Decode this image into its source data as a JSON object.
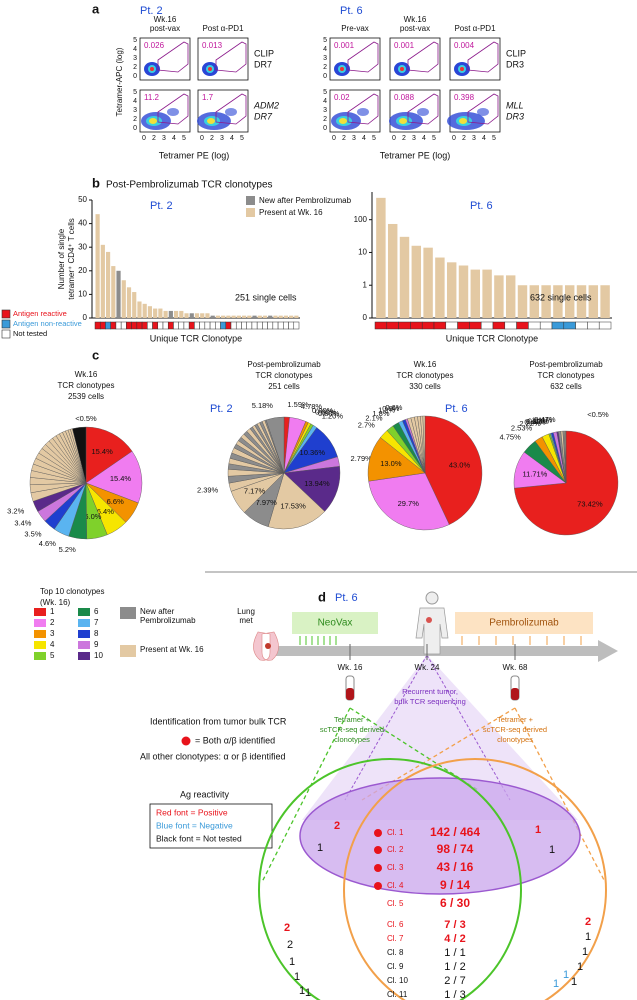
{
  "panel_a": {
    "label": "a",
    "y_axis_label": "Tetramer-APC (log)",
    "x_axis_label": "Tetramer PE (log)",
    "tick_labels": [
      "0",
      "2",
      "3",
      "4",
      "5"
    ],
    "patients": [
      {
        "name": "Pt. 2",
        "columns": [
          [
            "Wk.16",
            "post-vax"
          ],
          [
            "Post α-PD1"
          ]
        ],
        "rows": [
          {
            "label": [
              "CLIP",
              "DR7"
            ],
            "values": [
              0.026,
              0.013
            ]
          },
          {
            "label": [
              "ADM2",
              "DR7"
            ],
            "values": [
              11.2,
              1.7
            ]
          }
        ]
      },
      {
        "name": "Pt. 6",
        "columns": [
          [
            "Pre-vax"
          ],
          [
            "Wk.16",
            "post-vax"
          ],
          [
            "Post α-PD1"
          ]
        ],
        "rows": [
          {
            "label": [
              "CLIP",
              "DR3"
            ],
            "values": [
              0.001,
              0.001,
              0.004
            ]
          },
          {
            "label": [
              "MLL",
              "DR3"
            ],
            "values": [
              0.02,
              0.088,
              0.398
            ]
          }
        ]
      }
    ]
  },
  "panel_b": {
    "label": "b",
    "title": "Post-Pembrolizumab TCR clonotypes",
    "reactivity_legend": [
      {
        "name": "Antigen reactive",
        "color": "#e8131b"
      },
      {
        "name": "Antigen non-reactive",
        "color": "#3a9ad9"
      },
      {
        "name": "Not tested",
        "color": "#ffffff"
      }
    ]
  },
  "chart_data": [
    {
      "type": "bar",
      "subtitle": "Pt. 2",
      "y_label": [
        "Number of single",
        "tetramer⁺ CD4⁺ T cells"
      ],
      "x_label": "Unique TCR Clonotype",
      "annotation": "251 single cells",
      "ylim": [
        0,
        50
      ],
      "yticks": [
        0,
        10,
        20,
        30,
        40,
        50
      ],
      "series": [
        {
          "name": "New after Pembrolizumab",
          "color": "#8c8c8c",
          "values": [
            null,
            null,
            null,
            null,
            20,
            null,
            null,
            null,
            null,
            null,
            null,
            null,
            null,
            null,
            3,
            null,
            null,
            null,
            2,
            null,
            null,
            null,
            1,
            null,
            null,
            null,
            null,
            null,
            null,
            null,
            1,
            null,
            null,
            1,
            null,
            null,
            null,
            null,
            null
          ]
        },
        {
          "name": "Present at Wk. 16",
          "color": "#e3c9a3",
          "values": [
            44,
            31,
            28,
            22,
            null,
            16,
            13,
            11,
            7,
            6,
            5,
            4,
            4,
            3,
            null,
            3,
            3,
            2,
            null,
            2,
            2,
            2,
            null,
            1,
            1,
            1,
            1,
            1,
            1,
            1,
            null,
            1,
            1,
            null,
            1,
            1,
            1,
            1,
            1
          ]
        }
      ],
      "reactivity": [
        0,
        0,
        1,
        0,
        2,
        2,
        0,
        0,
        0,
        0,
        2,
        0,
        2,
        2,
        0,
        2,
        2,
        2,
        0,
        2,
        2,
        2,
        2,
        2,
        1,
        0,
        2,
        2,
        2,
        2,
        2,
        2,
        2,
        2,
        2,
        2,
        2,
        2,
        2
      ]
    },
    {
      "type": "bar",
      "subtitle": "Pt. 6",
      "x_label": "Unique TCR Clonotype",
      "annotation": "632 single cells",
      "log_scale": true,
      "ylim": [
        0.1,
        700
      ],
      "yticks": [
        {
          "value": 0.1,
          "label": "0"
        },
        1,
        10,
        100
      ],
      "color": "#e3c9a3",
      "values": [
        464,
        74,
        30,
        16,
        14,
        7,
        5,
        4,
        3,
        3,
        2,
        2,
        1,
        1,
        1,
        1,
        1,
        1,
        1,
        1
      ],
      "reactivity": [
        0,
        0,
        0,
        0,
        0,
        0,
        2,
        0,
        0,
        2,
        0,
        2,
        0,
        2,
        2,
        1,
        1,
        2,
        2,
        2
      ]
    },
    {
      "type": "pie",
      "title": [
        "Wk.16",
        "TCR clonotypes",
        "2539 cells"
      ],
      "annotation": "<0.5%",
      "values": [
        15.4,
        15.4,
        6.6,
        6.4,
        6.0,
        5.2,
        4.6,
        3.5,
        3.4,
        3.2,
        2.5,
        2.3,
        2.1,
        2,
        1.9,
        1.8,
        1.7,
        1.6,
        1.5,
        1.4,
        1.3,
        1.2,
        1.1,
        1.0,
        0.9,
        0.8,
        0.7,
        0.6,
        3.9
      ],
      "value_labels": [
        "15.4%",
        "15.4%",
        "6.6%",
        "6.4%",
        "6.0%",
        "5.2%",
        "4.6%",
        "3.5%",
        "3.4%",
        "3.2%",
        null,
        null,
        null,
        null,
        null,
        null,
        null,
        null,
        null,
        null,
        null,
        null,
        null,
        null,
        null,
        null,
        null,
        null,
        null
      ],
      "colors": [
        "#e8201e",
        "#f07cf0",
        "#f39200",
        "#f6e500",
        "#7fd12b",
        "#1a8a4a",
        "#5ab4f0",
        "#1f3fcf",
        "#cc77dd",
        "#5a2a8a",
        "#e3c9a3",
        "#e3c9a3",
        "#e3c9a3",
        "#e3c9a3",
        "#e3c9a3",
        "#e3c9a3",
        "#e3c9a3",
        "#e3c9a3",
        "#e3c9a3",
        "#e3c9a3",
        "#e3c9a3",
        "#e3c9a3",
        "#e3c9a3",
        "#e3c9a3",
        "#e3c9a3",
        "#e3c9a3",
        "#e3c9a3",
        "#e3c9a3",
        "#111111"
      ]
    },
    {
      "type": "pie",
      "title": [
        "Post-pembrolizumab",
        "TCR clonotypes",
        "251 cells"
      ],
      "values": [
        1.59,
        4.78,
        0.8,
        0.8,
        0.8,
        1.2,
        10.36,
        2.79,
        13.94,
        17.53,
        7.97,
        7.17,
        2.39,
        1.99,
        1.99,
        1.59,
        1.59,
        1.59,
        1.59,
        1.2,
        1.2,
        1.2,
        1.2,
        1.2,
        1.2,
        0.8,
        0.8,
        0.8,
        0.8,
        0.8,
        0.8,
        0.4,
        5.18
      ],
      "value_labels": [
        "1.59%",
        "4.78%",
        "0.80%",
        "0.80%",
        "0.80%",
        "1.20%",
        "10.36%",
        "2.79%",
        "13.94%",
        "17.53%",
        "7.97%",
        "7.17%",
        "2.39%",
        null,
        null,
        null,
        null,
        null,
        null,
        null,
        null,
        null,
        null,
        null,
        null,
        null,
        null,
        null,
        null,
        null,
        null,
        null,
        "5.18%"
      ],
      "colors": [
        "#e8201e",
        "#f07cf0",
        "#f39200",
        "#f6e500",
        "#7fd12b",
        "#5ab4f0",
        "#1f3fcf",
        "#cc77dd",
        "#5a2a8a",
        "#e3c9a3",
        "#8c8c8c",
        "#e3c9a3",
        "#e3c9a3",
        "#8c8c8c",
        "#e3c9a3",
        "#8c8c8c",
        "#e3c9a3",
        "#8c8c8c",
        "#e3c9a3",
        "#8c8c8c",
        "#e3c9a3",
        "#8c8c8c",
        "#e3c9a3",
        "#8c8c8c",
        "#e3c9a3",
        "#8c8c8c",
        "#e3c9a3",
        "#8c8c8c",
        "#e3c9a3",
        "#8c8c8c",
        "#e3c9a3",
        "#8c8c8c",
        "#8c8c8c"
      ]
    },
    {
      "type": "pie",
      "title": [
        "Wk.16",
        "TCR clonotypes",
        "330 cells"
      ],
      "values": [
        43.0,
        29.7,
        13.0,
        2.7,
        2.1,
        1.8,
        1.2,
        0.9,
        0.6,
        1,
        1,
        0.9,
        0.8,
        0.7,
        0.6
      ],
      "value_labels": [
        "43.0%",
        "29.7%",
        "13.0%",
        "2.7%",
        "2.1%",
        "1.8%",
        "1.2%",
        "0.9%",
        "0.6%",
        null,
        null,
        null,
        null,
        null,
        null
      ],
      "colors": [
        "#e8201e",
        "#f07cf0",
        "#f39200",
        "#f6e500",
        "#7fd12b",
        "#1a8a4a",
        "#5ab4f0",
        "#1f3fcf",
        "#cc77dd",
        "#e3c9a3",
        "#e3c9a3",
        "#e3c9a3",
        "#e3c9a3",
        "#e3c9a3",
        "#e3c9a3"
      ]
    },
    {
      "type": "pie",
      "title": [
        "Post-pembrolizumab",
        "TCR clonotypes",
        "632 cells"
      ],
      "annotation": "<0.5%",
      "values": [
        73.42,
        11.71,
        4.75,
        2.53,
        2.22,
        0.47,
        0.32,
        0.63,
        1.11,
        0.47,
        0.79,
        0.63,
        0.47,
        0.32,
        0.16
      ],
      "value_labels": [
        "73.42%",
        "11.71%",
        "4.75%",
        "2.53%",
        "2.22%",
        "0.47%",
        "0.32%",
        "0.63%",
        "1.11%",
        "0.47%",
        null,
        null,
        null,
        null,
        null
      ],
      "colors": [
        "#e8201e",
        "#f07cf0",
        "#1a8a4a",
        "#f39200",
        "#f6e500",
        "#7fd12b",
        "#5ab4f0",
        "#1f3fcf",
        "#cc77dd",
        "#5a2a8a",
        "#8c8c8c",
        "#e3c9a3",
        "#8c8c8c",
        "#e3c9a3",
        "#8c8c8c"
      ]
    }
  ],
  "panel_c": {
    "label": "c",
    "patients": [
      "Pt. 2",
      "Pt. 6"
    ],
    "legend_title": [
      "Top 10 clonotypes",
      "(Wk. 16)"
    ],
    "top10": [
      {
        "name": "1",
        "color": "#e8201e"
      },
      {
        "name": "2",
        "color": "#f07cf0"
      },
      {
        "name": "3",
        "color": "#f39200"
      },
      {
        "name": "4",
        "color": "#f6e500"
      },
      {
        "name": "5",
        "color": "#7fd12b"
      },
      {
        "name": "6",
        "color": "#1a8a4a"
      },
      {
        "name": "7",
        "color": "#5ab4f0"
      },
      {
        "name": "8",
        "color": "#1f3fcf"
      },
      {
        "name": "9",
        "color": "#cc77dd"
      },
      {
        "name": "10",
        "color": "#5a2a8a"
      }
    ],
    "other_legend": [
      {
        "name": [
          "New after",
          "Pembrolizumab"
        ],
        "color": "#8c8c8c"
      },
      {
        "name": [
          "Present at Wk. 16"
        ],
        "color": "#e3c9a3"
      }
    ]
  },
  "panel_d": {
    "label": "d",
    "patient": "Pt. 6",
    "site": [
      "Lung",
      "met"
    ],
    "neovax": "NeoVax",
    "pembro": "Pembrolizumab",
    "weeks": [
      "Wk. 16",
      "Wk. 24",
      "Wk. 68"
    ],
    "tumor_note": [
      "Recurrent tumor,",
      "bulk TCR sequencing"
    ],
    "wk16_note": [
      "Tetramer +",
      "scTCR-seq derived",
      "clonotypes"
    ],
    "wk68_note": [
      "Tetramer +",
      "scTCR-seq derived",
      "clonotypes"
    ],
    "key_title": "Identification from tumor bulk TCR",
    "key_dot": "= Both α/β identified",
    "key_other": "All other clonotypes:  α or β identified",
    "reactivity_title": "Ag reactivity",
    "reactivity": [
      {
        "text": "Red font = Positive",
        "color": "#e8131b"
      },
      {
        "text": "Blue font = Negative",
        "color": "#3a9ad9"
      },
      {
        "text": "Black font = Not tested",
        "color": "#111111"
      }
    ],
    "clonotypes": [
      {
        "name": "Cl. 1",
        "counts": "142 / 464",
        "bulk": true,
        "color": "#e8131b"
      },
      {
        "name": "Cl. 2",
        "counts": "98 / 74",
        "bulk": true,
        "color": "#e8131b"
      },
      {
        "name": "Cl. 3",
        "counts": "43 / 16",
        "bulk": true,
        "color": "#e8131b"
      },
      {
        "name": "Cl. 4",
        "counts": "9 / 14",
        "bulk": true,
        "color": "#e8131b"
      },
      {
        "name": "Cl. 5",
        "counts": "6 / 30",
        "bulk": false,
        "color": "#e8131b"
      },
      {
        "name": "Cl. 6",
        "counts": "7 / 3",
        "bulk": false,
        "color": "#e8131b"
      },
      {
        "name": "Cl. 7",
        "counts": "4 / 2",
        "bulk": false,
        "color": "#e8131b"
      },
      {
        "name": "Cl. 8",
        "counts": "1 / 1",
        "bulk": false,
        "color": "#111111"
      },
      {
        "name": "Cl. 9",
        "counts": "1 / 2",
        "bulk": false,
        "color": "#111111"
      },
      {
        "name": "Cl. 10",
        "counts": "2 / 7",
        "bulk": false,
        "color": "#111111"
      },
      {
        "name": "Cl. 11",
        "counts": "1 / 3",
        "bulk": false,
        "color": "#111111"
      }
    ],
    "tumor_left": [
      {
        "text": "2",
        "color": "#e8131b"
      },
      {
        "text": "1",
        "color": "#111111"
      }
    ],
    "tumor_right": [
      {
        "text": "1",
        "color": "#e8131b"
      },
      {
        "text": "1",
        "color": "#111111"
      }
    ],
    "wk16_only": [
      {
        "text": "2",
        "color": "#e8131b"
      },
      {
        "text": "2",
        "color": "#111111"
      },
      {
        "text": "1",
        "color": "#111111"
      },
      {
        "text": "1",
        "color": "#111111"
      },
      {
        "text": "1",
        "color": "#111111"
      },
      {
        "text": "1",
        "color": "#111111"
      }
    ],
    "wk68_only": [
      {
        "text": "2",
        "color": "#e8131b"
      },
      {
        "text": "1",
        "color": "#111111"
      },
      {
        "text": "1",
        "color": "#111111"
      },
      {
        "text": "1",
        "color": "#111111"
      },
      {
        "text": "1",
        "color": "#111111"
      },
      {
        "text": "1",
        "color": "#3a9ad9"
      },
      {
        "text": "1",
        "color": "#3a9ad9"
      }
    ]
  }
}
